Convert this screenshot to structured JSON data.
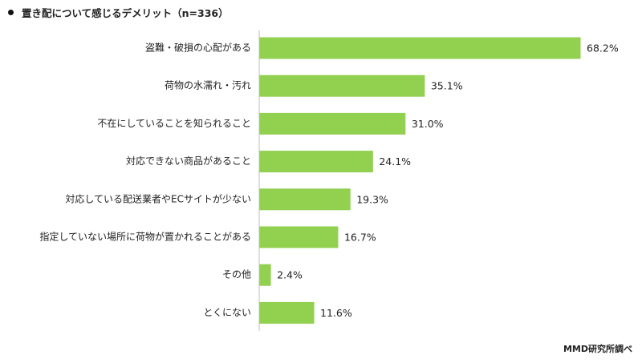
{
  "header": {
    "title": "置き配について感じるデメリット（n=336）"
  },
  "footer": {
    "source": "MMD研究所調べ"
  },
  "colors": {
    "bar": "#92d050",
    "text": "#222222",
    "axis": "#bfbfbf"
  },
  "chart_data": {
    "type": "bar",
    "orientation": "horizontal",
    "title": "置き配について感じるデメリット（n=336）",
    "xlabel": "",
    "ylabel": "",
    "xlim": [
      0,
      68.2
    ],
    "grid": false,
    "legend": "none",
    "categories": [
      "盗難・破損の心配がある",
      "荷物の水濡れ・汚れ",
      "不在にしていることを知られること",
      "対応できない商品があること",
      "対応している配送業者やECサイトが少ない",
      "指定していない場所に荷物が置かれることがある",
      "その他",
      "とくにない"
    ],
    "values": [
      68.2,
      35.1,
      31.0,
      24.1,
      19.3,
      16.7,
      2.4,
      11.6
    ],
    "value_labels": [
      "68.2%",
      "35.1%",
      "31.0%",
      "24.1%",
      "19.3%",
      "16.7%",
      "2.4%",
      "11.6%"
    ]
  }
}
